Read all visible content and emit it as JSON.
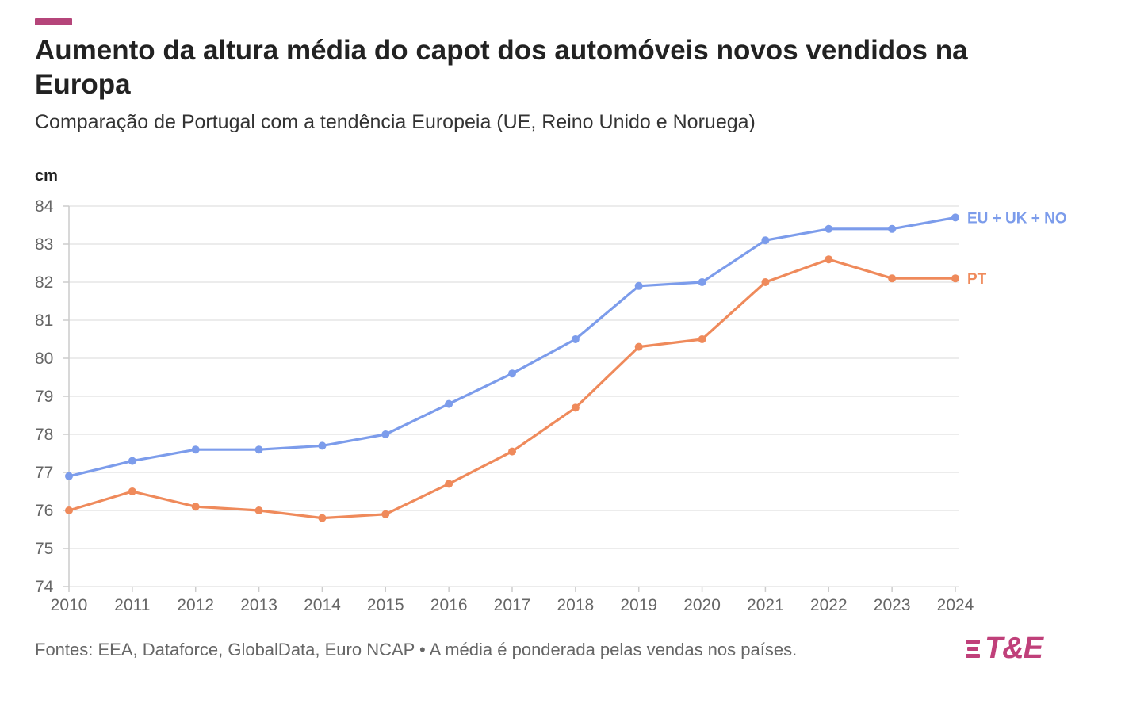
{
  "header": {
    "title": "Aumento da altura média do capot dos automóveis novos vendidos na Europa",
    "subtitle": "Comparação de Portugal com a tendência Europeia (UE, Reino Unido e Noruega)"
  },
  "footer": {
    "sources": "Fontes: EEA, Dataforce, GlobalData, Euro NCAP • A média é ponderada pelas vendas nos países.",
    "logo_text": "T&E"
  },
  "colors": {
    "accent": "#b5457a",
    "eu": "#7c9ceb",
    "pt": "#ef8a5b",
    "grid": "#e6e6e6",
    "axis": "#cccccc",
    "logo": "#c0407a"
  },
  "chart_data": {
    "type": "line",
    "title": "Aumento da altura média do capot dos automóveis novos vendidos na Europa",
    "subtitle": "Comparação de Portugal com a tendência Europeia (UE, Reino Unido e Noruega)",
    "ylabel": "cm",
    "xlabel": "",
    "ylim": [
      74,
      84
    ],
    "yticks": [
      74,
      75,
      76,
      77,
      78,
      79,
      80,
      81,
      82,
      83,
      84
    ],
    "grid": true,
    "legend": "end-of-line labels",
    "x": [
      2010,
      2011,
      2012,
      2013,
      2014,
      2015,
      2016,
      2017,
      2018,
      2019,
      2020,
      2021,
      2022,
      2023,
      2024
    ],
    "series": [
      {
        "name": "EU + UK + NO",
        "color": "#7c9ceb",
        "values": [
          76.9,
          77.3,
          77.6,
          77.6,
          77.7,
          78.0,
          78.8,
          79.6,
          80.5,
          81.9,
          82.0,
          83.1,
          83.4,
          83.4,
          83.7
        ]
      },
      {
        "name": "PT",
        "color": "#ef8a5b",
        "values": [
          76.0,
          76.5,
          76.1,
          76.0,
          75.8,
          75.9,
          76.7,
          77.55,
          78.7,
          80.3,
          80.5,
          82.0,
          82.6,
          82.1,
          82.1
        ]
      }
    ]
  }
}
